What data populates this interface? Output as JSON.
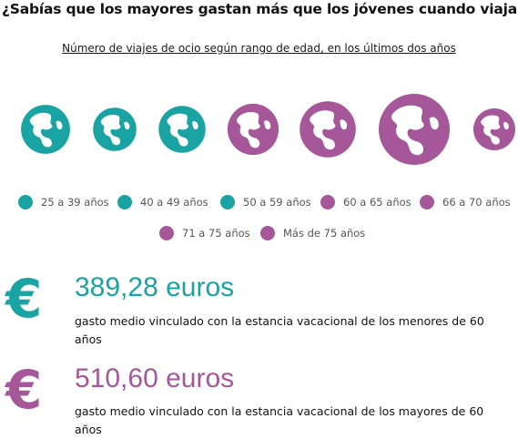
{
  "headline": "¿Sabías que los mayores gastan más que los jóvenes cuando viajan?",
  "chart_data": {
    "type": "bubble",
    "title": "Número de viajes de ocio según rango de edad, en los últimos dos años",
    "categories": [
      "25 a 39 años",
      "40 a 49 años",
      "50 a 59 años",
      "60 a 65 años",
      "66 a 70 años",
      "71 a 75 años",
      "Más de 75 años"
    ],
    "values": [
      0.69,
      0.61,
      0.66,
      0.72,
      0.79,
      1.0,
      0.59
    ],
    "colors": [
      "#1aa3a3",
      "#1aa3a3",
      "#1aa3a3",
      "#a6579a",
      "#a6579a",
      "#a6579a",
      "#a6579a"
    ],
    "icon": "globe-icon"
  },
  "legend": [
    {
      "label": "25 a 39 años",
      "color": "#1aa3a3"
    },
    {
      "label": "40 a 49 años",
      "color": "#1aa3a3"
    },
    {
      "label": "50 a 59 años",
      "color": "#1aa3a3"
    },
    {
      "label": "60 a 65 años",
      "color": "#a6579a"
    },
    {
      "label": "66 a 70 años",
      "color": "#a6579a"
    },
    {
      "label": "71 a 75 años",
      "color": "#a6579a"
    },
    {
      "label": "Más de 75 años",
      "color": "#a6579a"
    }
  ],
  "stats": [
    {
      "symbol": "€",
      "amount": "389,28 euros",
      "description": "gasto medio vinculado con la estancia vacacional de los menores de 60 años",
      "color": "#1aa3a3"
    },
    {
      "symbol": "€",
      "amount": "510,60 euros",
      "description": "gasto medio vinculado con la estancia vacacional de los mayores de 60 años",
      "color": "#a6579a"
    }
  ]
}
